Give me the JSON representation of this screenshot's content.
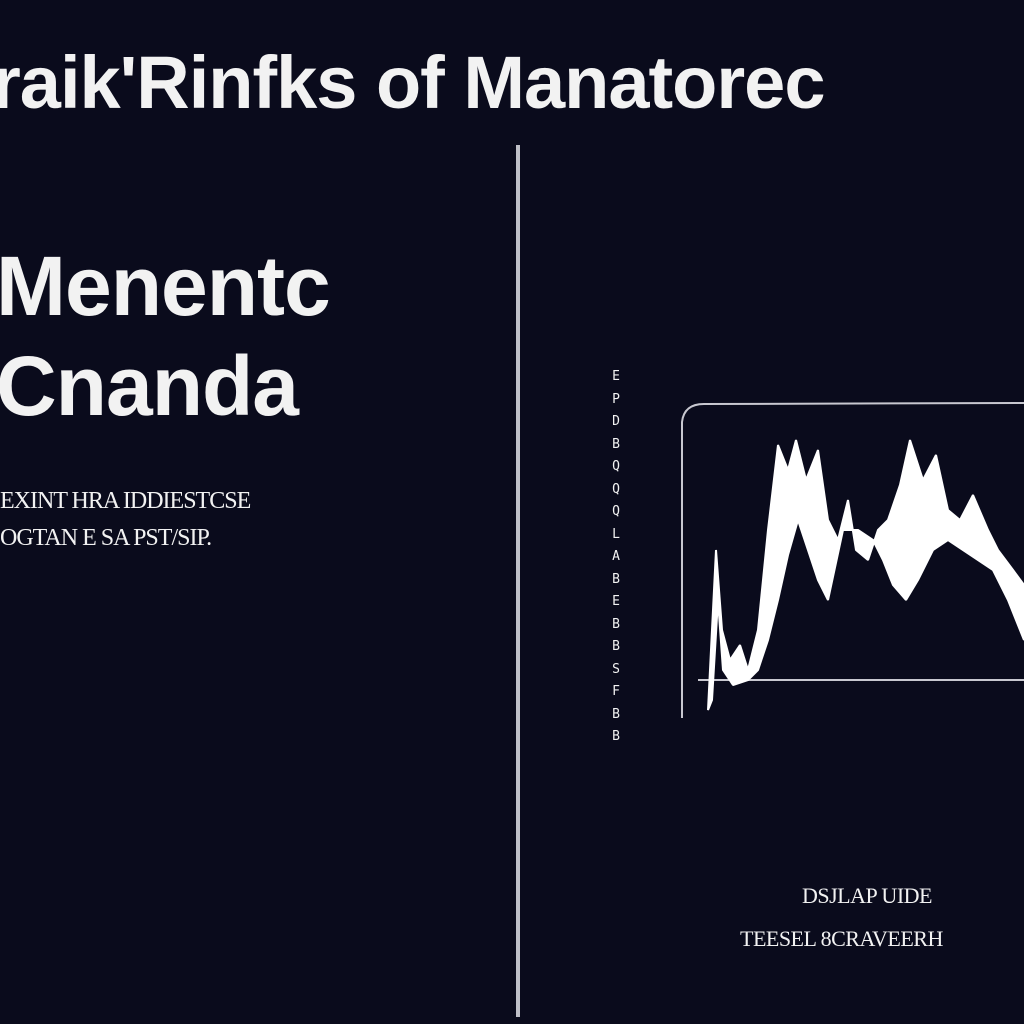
{
  "title": "raik'Rinfks of Manatorec",
  "left_panel": {
    "heading_line1": "Menentc",
    "heading_line2": "Cnanda",
    "subtext_line1": "EXINT HRA IDDIESTCSE",
    "subtext_line2": "OGTAN E SA PST/SIP."
  },
  "axis_glyphs": [
    "E",
    "P",
    "D",
    "B",
    "Q",
    "Q",
    "Q",
    "L",
    "A",
    "B",
    "E",
    "B",
    "B",
    "S",
    "F",
    "B",
    "B"
  ],
  "chart": {
    "line_color": "#ffffff",
    "frame_color": "#c8c8d0"
  },
  "footer": {
    "line1": "DSJLAP UIDE",
    "line2": "TEESEL 8CRAVEERH"
  },
  "colors": {
    "background": "#0a0b1c",
    "text": "#f2f2f2"
  }
}
